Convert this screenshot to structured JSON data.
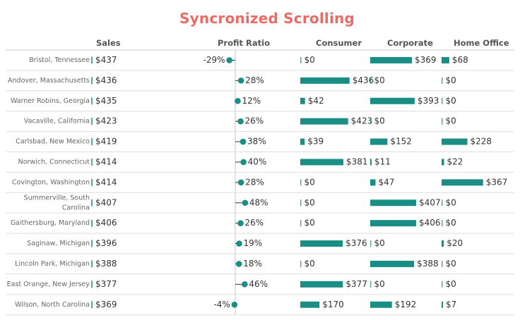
{
  "title": "Syncronized Scrolling",
  "headers": {
    "sales": "Sales",
    "profit_ratio": "Profit Ratio",
    "consumer": "Consumer",
    "corporate": "Corporate",
    "home_office": "Home Office"
  },
  "colors": {
    "title": "#ea6b66",
    "mark": "#1a8e84",
    "axis": "#b8c6cf",
    "row_line": "#dddddd",
    "text": "#333333",
    "label": "#666666"
  },
  "chart_data": {
    "type": "bar",
    "rows": [
      {
        "city": [
          "Bristol, Tennessee"
        ],
        "sales": "$437",
        "ratio": -29,
        "ratio_label": "-29%",
        "consumer": 0,
        "consumer_label": "$0",
        "corporate": 369,
        "corporate_label": "$369",
        "home_office": 68,
        "home_office_label": "$68"
      },
      {
        "city": [
          "Andover, Massachusetts"
        ],
        "sales": "$436",
        "ratio": 28,
        "ratio_label": "28%",
        "consumer": 436,
        "consumer_label": "$436",
        "corporate": 0,
        "corporate_label": "$0",
        "home_office": 0,
        "home_office_label": "$0"
      },
      {
        "city": [
          "Warner Robins, Georgia"
        ],
        "sales": "$435",
        "ratio": 12,
        "ratio_label": "12%",
        "consumer": 42,
        "consumer_label": "$42",
        "corporate": 393,
        "corporate_label": "$393",
        "home_office": 0,
        "home_office_label": "$0"
      },
      {
        "city": [
          "Vacaville, California"
        ],
        "sales": "$423",
        "ratio": 26,
        "ratio_label": "26%",
        "consumer": 423,
        "consumer_label": "$423",
        "corporate": 0,
        "corporate_label": "$0",
        "home_office": 0,
        "home_office_label": "$0"
      },
      {
        "city": [
          "Carlsbad, New Mexico"
        ],
        "sales": "$419",
        "ratio": 38,
        "ratio_label": "38%",
        "consumer": 39,
        "consumer_label": "$39",
        "corporate": 152,
        "corporate_label": "$152",
        "home_office": 228,
        "home_office_label": "$228"
      },
      {
        "city": [
          "Norwich, Connecticut"
        ],
        "sales": "$414",
        "ratio": 40,
        "ratio_label": "40%",
        "consumer": 381,
        "consumer_label": "$381",
        "corporate": 11,
        "corporate_label": "$11",
        "home_office": 22,
        "home_office_label": "$22"
      },
      {
        "city": [
          "Covington, Washington"
        ],
        "sales": "$414",
        "ratio": 28,
        "ratio_label": "28%",
        "consumer": 0,
        "consumer_label": "$0",
        "corporate": 47,
        "corporate_label": "$47",
        "home_office": 367,
        "home_office_label": "$367"
      },
      {
        "city": [
          "Summerville, South",
          "Carolina"
        ],
        "sales": "$407",
        "ratio": 48,
        "ratio_label": "48%",
        "consumer": 0,
        "consumer_label": "$0",
        "corporate": 407,
        "corporate_label": "$407",
        "home_office": 0,
        "home_office_label": "$0"
      },
      {
        "city": [
          "Gaithersburg, Maryland"
        ],
        "sales": "$406",
        "ratio": 26,
        "ratio_label": "26%",
        "consumer": 0,
        "consumer_label": "$0",
        "corporate": 406,
        "corporate_label": "$406",
        "home_office": 0,
        "home_office_label": "$0"
      },
      {
        "city": [
          "Saginaw, Michigan"
        ],
        "sales": "$396",
        "ratio": 19,
        "ratio_label": "19%",
        "consumer": 376,
        "consumer_label": "$376",
        "corporate": 0,
        "corporate_label": "$0",
        "home_office": 20,
        "home_office_label": "$20"
      },
      {
        "city": [
          "Lincoln Park, Michigan"
        ],
        "sales": "$388",
        "ratio": 18,
        "ratio_label": "18%",
        "consumer": 0,
        "consumer_label": "$0",
        "corporate": 388,
        "corporate_label": "$388",
        "home_office": 0,
        "home_office_label": "$0"
      },
      {
        "city": [
          "East Orange, New Jersey"
        ],
        "sales": "$377",
        "ratio": 46,
        "ratio_label": "46%",
        "consumer": 377,
        "consumer_label": "$377",
        "corporate": 0,
        "corporate_label": "$0",
        "home_office": 0,
        "home_office_label": "$0"
      },
      {
        "city": [
          "Wilson, North Carolina"
        ],
        "sales": "$369",
        "ratio": -4,
        "ratio_label": "-4%",
        "consumer": 170,
        "consumer_label": "$170",
        "corporate": 192,
        "corporate_label": "$192",
        "home_office": 7,
        "home_office_label": "$7"
      }
    ]
  }
}
